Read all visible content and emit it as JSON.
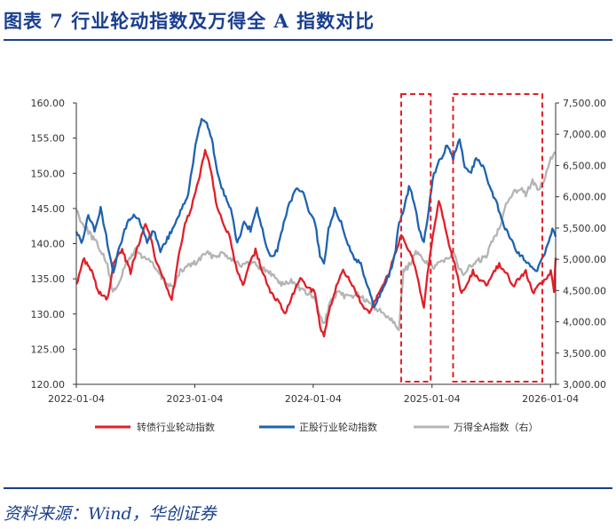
{
  "header": {
    "title": "图表 7   行业轮动指数及万得全 A 指数对比"
  },
  "footer": {
    "source": "资料来源：Wind，华创证券"
  },
  "colors": {
    "convertible": "#e02029",
    "equity": "#1e63b0",
    "windA": "#b4b4b4",
    "box": "#e02029",
    "title": "#1a3f8f"
  },
  "chart_data": {
    "type": "line",
    "title": "行业轮动指数及万得全 A 指数对比",
    "x_ticks": [
      "2022-01-04",
      "2023-01-04",
      "2024-01-04",
      "2025-01-04",
      "2026-01-04"
    ],
    "x_range": [
      "2022-01-04",
      "2026-01-20"
    ],
    "y_left": {
      "min": 120,
      "max": 160,
      "ticks": [
        "120.00",
        "125.00",
        "130.00",
        "135.00",
        "140.00",
        "145.00",
        "150.00",
        "155.00",
        "160.00"
      ]
    },
    "y_right": {
      "min": 3000,
      "max": 7500,
      "ticks": [
        "3,000.00",
        "3,500.00",
        "4,000.00",
        "4,500.00",
        "5,000.00",
        "5,500.00",
        "6,000.00",
        "6,500.00",
        "7,000.00",
        "7,500.00"
      ]
    },
    "highlight_ranges": [
      {
        "start": "2024-10-01",
        "end": "2024-12-31"
      },
      {
        "start": "2025-03-10",
        "end": "2025-12-10"
      }
    ],
    "series": [
      {
        "name": "转债行业轮动指数",
        "axis": "left",
        "color": "#e02029",
        "points": [
          [
            "2022-01-04",
            134
          ],
          [
            "2022-01-25",
            138
          ],
          [
            "2022-02-20",
            136
          ],
          [
            "2022-03-15",
            133
          ],
          [
            "2022-04-10",
            132
          ],
          [
            "2022-04-28",
            137
          ],
          [
            "2022-05-25",
            139
          ],
          [
            "2022-06-20",
            136
          ],
          [
            "2022-07-15",
            140
          ],
          [
            "2022-08-05",
            143
          ],
          [
            "2022-08-20",
            141
          ],
          [
            "2022-09-10",
            137
          ],
          [
            "2022-10-01",
            135
          ],
          [
            "2022-10-25",
            132
          ],
          [
            "2022-11-15",
            138
          ],
          [
            "2022-12-05",
            143
          ],
          [
            "2022-12-25",
            145
          ],
          [
            "2023-01-15",
            149
          ],
          [
            "2023-02-05",
            153
          ],
          [
            "2023-02-20",
            151
          ],
          [
            "2023-03-10",
            146
          ],
          [
            "2023-04-01",
            143
          ],
          [
            "2023-04-20",
            141
          ],
          [
            "2023-05-10",
            137
          ],
          [
            "2023-06-01",
            134
          ],
          [
            "2023-06-20",
            137
          ],
          [
            "2023-07-10",
            139
          ],
          [
            "2023-08-01",
            136
          ],
          [
            "2023-08-25",
            133
          ],
          [
            "2023-09-15",
            132
          ],
          [
            "2023-10-10",
            130
          ],
          [
            "2023-11-05",
            133
          ],
          [
            "2023-11-25",
            135
          ],
          [
            "2023-12-15",
            134
          ],
          [
            "2024-01-10",
            133
          ],
          [
            "2024-01-25",
            128
          ],
          [
            "2024-02-06",
            127
          ],
          [
            "2024-02-25",
            131
          ],
          [
            "2024-03-15",
            134
          ],
          [
            "2024-04-05",
            136
          ],
          [
            "2024-04-25",
            135
          ],
          [
            "2024-05-15",
            133
          ],
          [
            "2024-06-05",
            131
          ],
          [
            "2024-06-25",
            130
          ],
          [
            "2024-07-15",
            132
          ],
          [
            "2024-08-05",
            134
          ],
          [
            "2024-08-25",
            136
          ],
          [
            "2024-09-15",
            139
          ],
          [
            "2024-10-01",
            141
          ],
          [
            "2024-10-15",
            140
          ],
          [
            "2024-11-05",
            138
          ],
          [
            "2024-11-25",
            134
          ],
          [
            "2024-12-10",
            131
          ],
          [
            "2024-12-25",
            137
          ],
          [
            "2025-01-10",
            142
          ],
          [
            "2025-01-25",
            146
          ],
          [
            "2025-02-10",
            143
          ],
          [
            "2025-02-25",
            140
          ],
          [
            "2025-03-15",
            137
          ],
          [
            "2025-04-05",
            133
          ],
          [
            "2025-04-20",
            134
          ],
          [
            "2025-05-10",
            136
          ],
          [
            "2025-05-30",
            135
          ],
          [
            "2025-06-20",
            134
          ],
          [
            "2025-07-10",
            136
          ],
          [
            "2025-07-30",
            137
          ],
          [
            "2025-08-20",
            136
          ],
          [
            "2025-09-10",
            134
          ],
          [
            "2025-09-30",
            135
          ],
          [
            "2025-10-20",
            136
          ],
          [
            "2025-11-10",
            133
          ],
          [
            "2025-11-30",
            134
          ],
          [
            "2025-12-20",
            135
          ],
          [
            "2026-01-05",
            136
          ],
          [
            "2026-01-15",
            133
          ],
          [
            "2026-01-20",
            138
          ]
        ]
      },
      {
        "name": "正股行业轮动指数",
        "axis": "left",
        "color": "#1e63b0",
        "points": [
          [
            "2022-01-04",
            142
          ],
          [
            "2022-01-20",
            140
          ],
          [
            "2022-02-10",
            144
          ],
          [
            "2022-03-01",
            142
          ],
          [
            "2022-03-20",
            145
          ],
          [
            "2022-04-10",
            140
          ],
          [
            "2022-04-28",
            136
          ],
          [
            "2022-05-20",
            140
          ],
          [
            "2022-06-10",
            143
          ],
          [
            "2022-06-30",
            144
          ],
          [
            "2022-07-20",
            143
          ],
          [
            "2022-08-10",
            140
          ],
          [
            "2022-08-30",
            142
          ],
          [
            "2022-09-20",
            139
          ],
          [
            "2022-10-15",
            141
          ],
          [
            "2022-11-05",
            143
          ],
          [
            "2022-11-25",
            145
          ],
          [
            "2022-12-15",
            147
          ],
          [
            "2023-01-10",
            155
          ],
          [
            "2023-01-25",
            158
          ],
          [
            "2023-02-10",
            157
          ],
          [
            "2023-02-25",
            155
          ],
          [
            "2023-03-15",
            150
          ],
          [
            "2023-04-05",
            147
          ],
          [
            "2023-04-25",
            145
          ],
          [
            "2023-05-15",
            140
          ],
          [
            "2023-06-05",
            143
          ],
          [
            "2023-06-25",
            142
          ],
          [
            "2023-07-15",
            145
          ],
          [
            "2023-08-05",
            141
          ],
          [
            "2023-08-25",
            138
          ],
          [
            "2023-09-15",
            139
          ],
          [
            "2023-10-05",
            143
          ],
          [
            "2023-10-25",
            146
          ],
          [
            "2023-11-15",
            148
          ],
          [
            "2023-12-05",
            147
          ],
          [
            "2023-12-25",
            144
          ],
          [
            "2024-01-10",
            143
          ],
          [
            "2024-01-25",
            138
          ],
          [
            "2024-02-06",
            137
          ],
          [
            "2024-02-20",
            142
          ],
          [
            "2024-03-10",
            145
          ],
          [
            "2024-03-30",
            143
          ],
          [
            "2024-04-20",
            140
          ],
          [
            "2024-05-10",
            138
          ],
          [
            "2024-05-30",
            137
          ],
          [
            "2024-06-20",
            134
          ],
          [
            "2024-07-10",
            131
          ],
          [
            "2024-07-30",
            133
          ],
          [
            "2024-08-20",
            135
          ],
          [
            "2024-09-10",
            138
          ],
          [
            "2024-09-25",
            143
          ],
          [
            "2024-10-10",
            145
          ],
          [
            "2024-10-25",
            148
          ],
          [
            "2024-11-10",
            146
          ],
          [
            "2024-11-25",
            142
          ],
          [
            "2024-12-10",
            140
          ],
          [
            "2024-12-25",
            145
          ],
          [
            "2025-01-10",
            150
          ],
          [
            "2025-01-30",
            152
          ],
          [
            "2025-02-20",
            154
          ],
          [
            "2025-03-10",
            152
          ],
          [
            "2025-03-30",
            155
          ],
          [
            "2025-04-15",
            151
          ],
          [
            "2025-05-01",
            150
          ],
          [
            "2025-05-20",
            152
          ],
          [
            "2025-06-10",
            151
          ],
          [
            "2025-07-01",
            148
          ],
          [
            "2025-07-20",
            146
          ],
          [
            "2025-08-10",
            143
          ],
          [
            "2025-09-01",
            141
          ],
          [
            "2025-09-20",
            139
          ],
          [
            "2025-10-10",
            138
          ],
          [
            "2025-10-30",
            137
          ],
          [
            "2025-11-20",
            136
          ],
          [
            "2025-12-10",
            138
          ],
          [
            "2025-12-30",
            140
          ],
          [
            "2026-01-10",
            142
          ],
          [
            "2026-01-20",
            141
          ]
        ]
      },
      {
        "name": "万得全A指数（右）",
        "axis": "right",
        "color": "#b4b4b4",
        "points": [
          [
            "2022-01-04",
            5800
          ],
          [
            "2022-01-20",
            5600
          ],
          [
            "2022-02-10",
            5450
          ],
          [
            "2022-03-01",
            5300
          ],
          [
            "2022-03-20",
            5150
          ],
          [
            "2022-04-10",
            4900
          ],
          [
            "2022-04-27",
            4450
          ],
          [
            "2022-05-20",
            4700
          ],
          [
            "2022-06-10",
            4950
          ],
          [
            "2022-07-05",
            5150
          ],
          [
            "2022-07-25",
            5050
          ],
          [
            "2022-08-15",
            5000
          ],
          [
            "2022-09-05",
            4850
          ],
          [
            "2022-10-01",
            4650
          ],
          [
            "2022-10-31",
            4550
          ],
          [
            "2022-11-20",
            4800
          ],
          [
            "2022-12-15",
            4900
          ],
          [
            "2023-01-10",
            4950
          ],
          [
            "2023-02-05",
            5100
          ],
          [
            "2023-03-01",
            5050
          ],
          [
            "2023-04-01",
            5100
          ],
          [
            "2023-05-01",
            5000
          ],
          [
            "2023-06-01",
            4900
          ],
          [
            "2023-07-01",
            4950
          ],
          [
            "2023-08-01",
            4850
          ],
          [
            "2023-09-01",
            4750
          ],
          [
            "2023-10-01",
            4600
          ],
          [
            "2023-11-01",
            4650
          ],
          [
            "2023-12-01",
            4500
          ],
          [
            "2024-01-05",
            4400
          ],
          [
            "2024-01-25",
            4100
          ],
          [
            "2024-02-06",
            3950
          ],
          [
            "2024-02-25",
            4300
          ],
          [
            "2024-03-20",
            4450
          ],
          [
            "2024-04-20",
            4400
          ],
          [
            "2024-05-20",
            4450
          ],
          [
            "2024-06-20",
            4300
          ],
          [
            "2024-07-20",
            4200
          ],
          [
            "2024-08-20",
            4100
          ],
          [
            "2024-09-10",
            4000
          ],
          [
            "2024-09-24",
            3900
          ],
          [
            "2024-10-08",
            4800
          ],
          [
            "2024-10-25",
            4900
          ],
          [
            "2024-11-15",
            5100
          ],
          [
            "2024-12-10",
            5000
          ],
          [
            "2025-01-10",
            4850
          ],
          [
            "2025-02-10",
            5000
          ],
          [
            "2025-03-10",
            5100
          ],
          [
            "2025-04-07",
            4750
          ],
          [
            "2025-04-25",
            4850
          ],
          [
            "2025-05-20",
            4950
          ],
          [
            "2025-06-20",
            5050
          ],
          [
            "2025-07-10",
            5300
          ],
          [
            "2025-07-30",
            5500
          ],
          [
            "2025-08-20",
            5900
          ],
          [
            "2025-09-10",
            6050
          ],
          [
            "2025-09-30",
            6150
          ],
          [
            "2025-10-20",
            6050
          ],
          [
            "2025-11-10",
            6250
          ],
          [
            "2025-11-25",
            6100
          ],
          [
            "2025-12-15",
            6250
          ],
          [
            "2026-01-05",
            6600
          ],
          [
            "2026-01-20",
            6700
          ]
        ]
      }
    ]
  }
}
